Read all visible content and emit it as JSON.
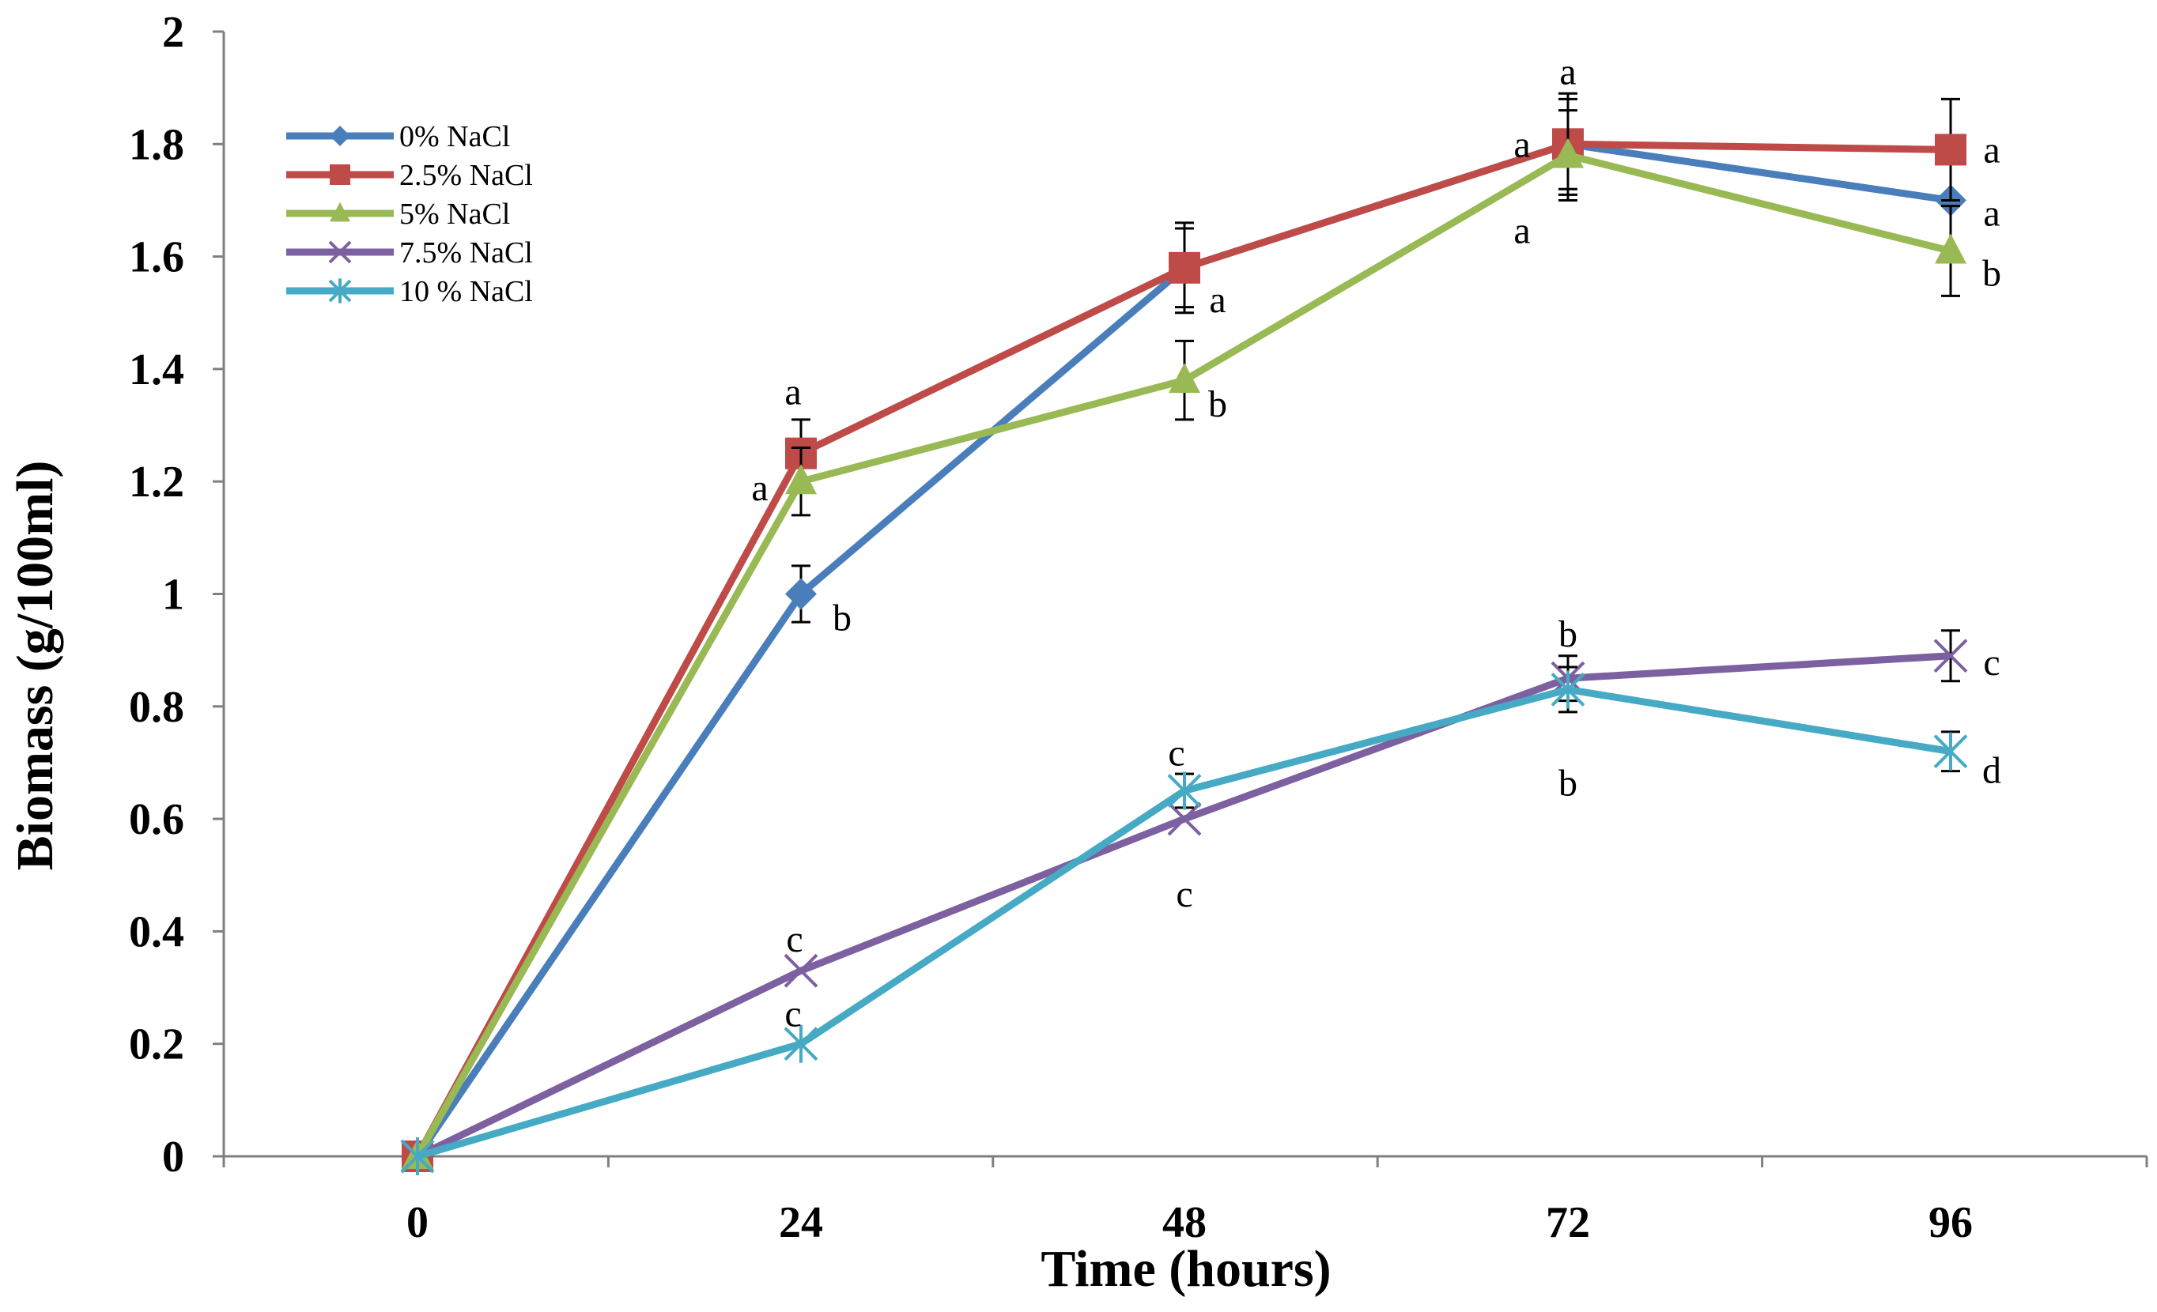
{
  "chart_data": {
    "type": "line",
    "title": "",
    "xlabel": "Time (hours)",
    "ylabel": "Biomass (g/100ml)",
    "x": [
      0,
      24,
      48,
      72,
      96
    ],
    "x_tick_labels": [
      "0",
      "24",
      "48",
      "72",
      "96"
    ],
    "ylim": [
      0,
      2
    ],
    "y_tick_labels": [
      "0",
      "0.2",
      "0.4",
      "0.6",
      "0.8",
      "1",
      "1.2",
      "1.4",
      "1.6",
      "1.8",
      "2"
    ],
    "legend_position": "top-left",
    "series": [
      {
        "name": "0% NaCl",
        "color": "#4A7EBB",
        "marker": "diamond",
        "values": [
          0,
          1.0,
          1.58,
          1.8,
          1.7
        ],
        "errors": [
          0,
          0.05,
          0.07,
          0.08,
          0.0
        ],
        "sig_labels": [
          "",
          "b",
          "",
          "a",
          "a"
        ]
      },
      {
        "name": "2.5% NaCl",
        "color": "#BE4B48",
        "marker": "square",
        "values": [
          0,
          1.25,
          1.58,
          1.8,
          1.79
        ],
        "errors": [
          0,
          0.06,
          0.08,
          0.09,
          0.09
        ],
        "sig_labels": [
          "",
          "a",
          "a",
          "a",
          "a"
        ]
      },
      {
        "name": "5% NaCl",
        "color": "#98B954",
        "marker": "triangle",
        "values": [
          0,
          1.2,
          1.38,
          1.78,
          1.61
        ],
        "errors": [
          0,
          0.06,
          0.07,
          0.08,
          0.08
        ],
        "sig_labels": [
          "",
          "a",
          "b",
          "a",
          "b"
        ]
      },
      {
        "name": "7.5% NaCl",
        "color": "#7D60A0",
        "marker": "x",
        "values": [
          0,
          0.33,
          0.6,
          0.85,
          0.89
        ],
        "errors": [
          0,
          0.0,
          0.0,
          0.04,
          0.045
        ],
        "sig_labels": [
          "",
          "c",
          "c",
          "b",
          "c"
        ]
      },
      {
        "name": "10 % NaCl",
        "color": "#46AAC5",
        "marker": "star",
        "values": [
          0,
          0.2,
          0.65,
          0.83,
          0.72
        ],
        "errors": [
          0,
          0.0,
          0.03,
          0.04,
          0.035
        ],
        "sig_labels": [
          "",
          "c",
          "c",
          "b",
          "d"
        ]
      }
    ]
  }
}
